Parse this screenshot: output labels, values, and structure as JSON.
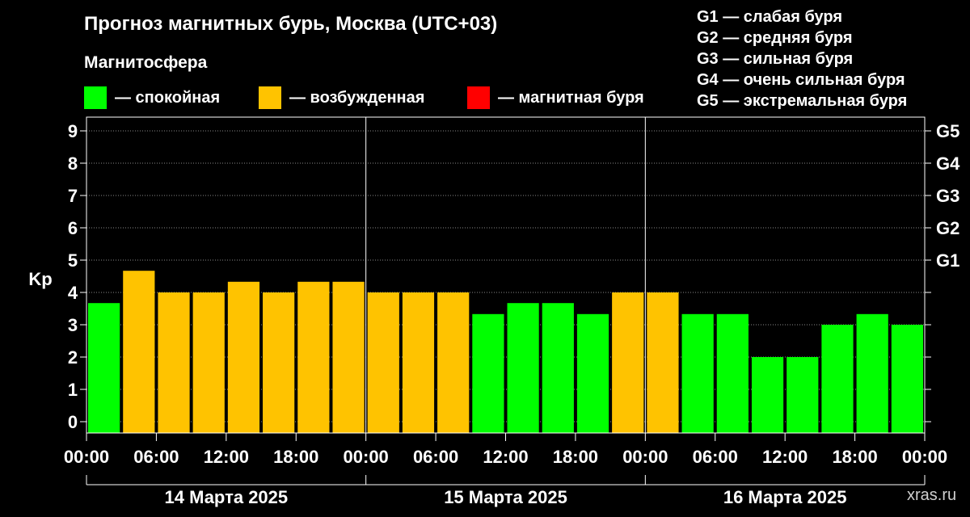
{
  "header": {
    "title": "Прогноз магнитных бурь, Москва (UTC+03)",
    "magnetosphere_title": "Магнитосфера"
  },
  "legend": [
    {
      "label": "— спокойная",
      "color": "#00ff00"
    },
    {
      "label": "— возбужденная",
      "color": "#ffc300"
    },
    {
      "label": "— магнитная буря",
      "color": "#ff0000"
    }
  ],
  "g_scale": [
    "G1 — слабая буря",
    "G2 — средняя буря",
    "G3 — сильная буря",
    "G4 — очень сильная буря",
    "G5 — экстремальная буря"
  ],
  "watermark": "xras.ru",
  "chart_data": {
    "type": "bar",
    "ylabel": "Kp",
    "ylim": [
      0,
      9
    ],
    "y_ticks": [
      "0",
      "1",
      "2",
      "3",
      "4",
      "5",
      "6",
      "7",
      "8",
      "9"
    ],
    "right_ticks": [
      {
        "kp": 5,
        "label": "G1"
      },
      {
        "kp": 6,
        "label": "G2"
      },
      {
        "kp": 7,
        "label": "G3"
      },
      {
        "kp": 8,
        "label": "G4"
      },
      {
        "kp": 9,
        "label": "G5"
      }
    ],
    "x_ticks": [
      "00:00",
      "06:00",
      "12:00",
      "18:00",
      "00:00",
      "06:00",
      "12:00",
      "18:00",
      "00:00",
      "06:00",
      "12:00",
      "18:00",
      "00:00"
    ],
    "days": [
      "14 Марта 2025",
      "15 Марта 2025",
      "16 Марта 2025"
    ],
    "interval_hours": 3,
    "grid": true,
    "values": [
      3.67,
      4.67,
      4.0,
      4.0,
      4.33,
      4.0,
      4.33,
      4.33,
      4.0,
      4.0,
      4.0,
      3.33,
      3.67,
      3.67,
      3.33,
      4.0,
      4.0,
      3.33,
      3.33,
      2.0,
      2.0,
      3.0,
      3.33,
      3.0
    ],
    "levels": [
      "quiet",
      "active",
      "active",
      "active",
      "active",
      "active",
      "active",
      "active",
      "active",
      "active",
      "active",
      "quiet",
      "quiet",
      "quiet",
      "quiet",
      "active",
      "active",
      "quiet",
      "quiet",
      "quiet",
      "quiet",
      "quiet",
      "quiet",
      "quiet"
    ],
    "level_colors": {
      "quiet": "#00ff00",
      "active": "#ffc300",
      "storm": "#ff0000"
    }
  }
}
